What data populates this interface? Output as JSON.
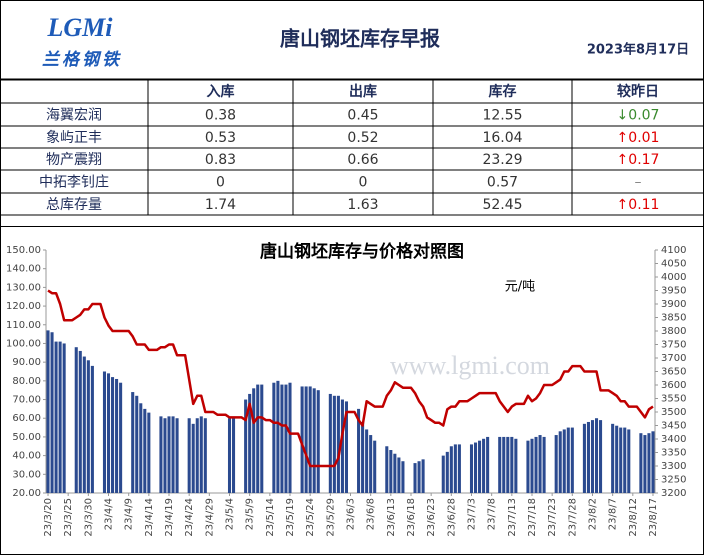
{
  "header": {
    "logo": "LGMi",
    "brand": "兰格钢铁",
    "title": "唐山钢坯库存早报",
    "date": "2023年8月17日"
  },
  "table": {
    "columns": [
      "入库",
      "出库",
      "库存",
      "较昨日"
    ],
    "rows": [
      {
        "name": "海翼宏润",
        "cells": [
          "0.38",
          "0.45",
          "12.55"
        ],
        "change": {
          "arrow": "↓",
          "value": "0.07",
          "color": "#3a8a2e"
        }
      },
      {
        "name": "象屿正丰",
        "cells": [
          "0.53",
          "0.52",
          "16.04"
        ],
        "change": {
          "arrow": "↑",
          "value": "0.01",
          "color": "#e00000"
        }
      },
      {
        "name": "物产震翔",
        "cells": [
          "0.83",
          "0.66",
          "23.29"
        ],
        "change": {
          "arrow": "↑",
          "value": "0.17",
          "color": "#e00000"
        }
      },
      {
        "name": "中拓李钊庄",
        "cells": [
          "0",
          "0",
          "0.57"
        ],
        "change": {
          "value": "–",
          "color": "#888888"
        }
      },
      {
        "name": "总库存量",
        "cells": [
          "1.74",
          "1.63",
          "52.45"
        ],
        "change": {
          "arrow": "↑",
          "value": "0.11",
          "color": "#e00000"
        }
      }
    ]
  },
  "chart_data": {
    "type": "bar-line",
    "title": "唐山钢坯库存与价格对照图",
    "y2_label": "元/吨",
    "watermark": "www.lgmi.com",
    "categories": [
      "23/3/20",
      null,
      null,
      null,
      null,
      "23/3/25",
      null,
      null,
      null,
      null,
      "23/3/30",
      null,
      null,
      null,
      null,
      "23/4/4",
      null,
      null,
      null,
      null,
      "23/4/9",
      null,
      null,
      null,
      null,
      "23/4/14",
      null,
      null,
      null,
      null,
      "23/4/19",
      null,
      null,
      null,
      null,
      "23/4/24",
      null,
      null,
      null,
      null,
      "23/4/29",
      null,
      null,
      null,
      null,
      "23/5/4",
      null,
      null,
      null,
      null,
      "23/5/9",
      null,
      null,
      null,
      null,
      "23/5/14",
      null,
      null,
      null,
      null,
      "23/5/19",
      null,
      null,
      null,
      null,
      "23/5/24",
      null,
      null,
      null,
      null,
      "23/5/29",
      null,
      null,
      null,
      null,
      "23/6/3",
      null,
      null,
      null,
      null,
      "23/6/8",
      null,
      null,
      null,
      null,
      "23/6/13",
      null,
      null,
      null,
      null,
      "23/6/18",
      null,
      null,
      null,
      null,
      "23/6/23",
      null,
      null,
      null,
      null,
      "23/6/28",
      null,
      null,
      null,
      null,
      "23/7/3",
      null,
      null,
      null,
      null,
      "23/7/8",
      null,
      null,
      null,
      null,
      "23/7/13",
      null,
      null,
      null,
      null,
      "23/7/18",
      null,
      null,
      null,
      null,
      "23/7/23",
      null,
      null,
      null,
      null,
      "23/7/28",
      null,
      null,
      null,
      null,
      "23/8/2",
      null,
      null,
      null,
      null,
      "23/8/7",
      null,
      null,
      null,
      null,
      "23/8/12",
      null,
      null,
      null,
      null,
      "23/8/17"
    ],
    "series": [
      {
        "type": "bar",
        "color": "#2b4a8f",
        "values": [
          107,
          106,
          101,
          101,
          100,
          null,
          null,
          98,
          96,
          93,
          91,
          88,
          null,
          null,
          85,
          84,
          82,
          81,
          79,
          null,
          null,
          74,
          72,
          68,
          65,
          63,
          null,
          null,
          61,
          60,
          61,
          61,
          60,
          null,
          null,
          60,
          57,
          60,
          61,
          60,
          null,
          null,
          null,
          null,
          null,
          60,
          60,
          null,
          null,
          70,
          73,
          76,
          78,
          78,
          null,
          null,
          79,
          80,
          78,
          78,
          79,
          null,
          null,
          77,
          77,
          77,
          76,
          75,
          null,
          null,
          73,
          72,
          72,
          70,
          69,
          null,
          null,
          65,
          58,
          54,
          51,
          48,
          null,
          null,
          45,
          43,
          41,
          39,
          37,
          null,
          null,
          36,
          37,
          38,
          null,
          null,
          null,
          null,
          40,
          42,
          45,
          46,
          46,
          null,
          null,
          46,
          47,
          48,
          49,
          50,
          null,
          null,
          50,
          50,
          50,
          50,
          49,
          null,
          null,
          48,
          49,
          50,
          51,
          50,
          null,
          null,
          51,
          53,
          54,
          55,
          55,
          null,
          null,
          57,
          58,
          59,
          60,
          59,
          null,
          null,
          57,
          56,
          55,
          55,
          54,
          null,
          null,
          52,
          51,
          52,
          53
        ]
      },
      {
        "type": "line",
        "axis": "y2",
        "color": "#c00000",
        "values": [
          3950,
          3940,
          3940,
          3900,
          3840,
          3840,
          3840,
          3850,
          3860,
          3880,
          3880,
          3900,
          3900,
          3900,
          3850,
          3820,
          3800,
          3800,
          3800,
          3800,
          3800,
          3780,
          3750,
          3750,
          3750,
          3730,
          3730,
          3730,
          3740,
          3740,
          3750,
          3750,
          3710,
          3710,
          3710,
          3620,
          3530,
          3560,
          3560,
          3500,
          3500,
          3500,
          3490,
          3490,
          3490,
          3480,
          3480,
          3480,
          3480,
          3470,
          3530,
          3460,
          3480,
          3480,
          3470,
          3470,
          3460,
          3460,
          3450,
          3450,
          3420,
          3420,
          3420,
          3380,
          3340,
          3300,
          3300,
          3300,
          3300,
          3300,
          3300,
          3300,
          3330,
          3420,
          3500,
          3500,
          3500,
          3470,
          3450,
          3540,
          3530,
          3520,
          3520,
          3520,
          3560,
          3580,
          3610,
          3600,
          3590,
          3590,
          3590,
          3570,
          3540,
          3520,
          3480,
          3470,
          3460,
          3460,
          3450,
          3510,
          3520,
          3520,
          3540,
          3540,
          3540,
          3550,
          3560,
          3570,
          3570,
          3570,
          3570,
          3570,
          3540,
          3520,
          3500,
          3520,
          3530,
          3530,
          3530,
          3560,
          3540,
          3550,
          3570,
          3600,
          3600,
          3600,
          3610,
          3620,
          3650,
          3650,
          3670,
          3670,
          3670,
          3650,
          3650,
          3650,
          3650,
          3580,
          3580,
          3580,
          3570,
          3560,
          3540,
          3540,
          3520,
          3520,
          3520,
          3500,
          3480,
          3510,
          3520
        ]
      }
    ],
    "ylim": [
      20,
      150
    ],
    "yticks": [
      {
        "value": 20,
        "label": "20.00"
      },
      {
        "value": 30,
        "label": "30.00"
      },
      {
        "value": 40,
        "label": "40.00"
      },
      {
        "value": 50,
        "label": "50.00"
      },
      {
        "value": 60,
        "label": "60.00"
      },
      {
        "value": 70,
        "label": "70.00"
      },
      {
        "value": 80,
        "label": "80.00"
      },
      {
        "value": 90,
        "label": "90.00"
      },
      {
        "value": 100,
        "label": "100.00"
      },
      {
        "value": 110,
        "label": "110.00"
      },
      {
        "value": 120,
        "label": "120.00"
      },
      {
        "value": 130,
        "label": "130.00"
      },
      {
        "value": 140,
        "label": "140.00"
      },
      {
        "value": 150,
        "label": "150.00"
      }
    ],
    "y2lim": [
      3200,
      4100
    ],
    "y2ticks": [
      3200,
      3250,
      3300,
      3350,
      3400,
      3450,
      3500,
      3550,
      3600,
      3650,
      3700,
      3750,
      3800,
      3850,
      3900,
      3950,
      4000,
      4050,
      4100
    ]
  }
}
